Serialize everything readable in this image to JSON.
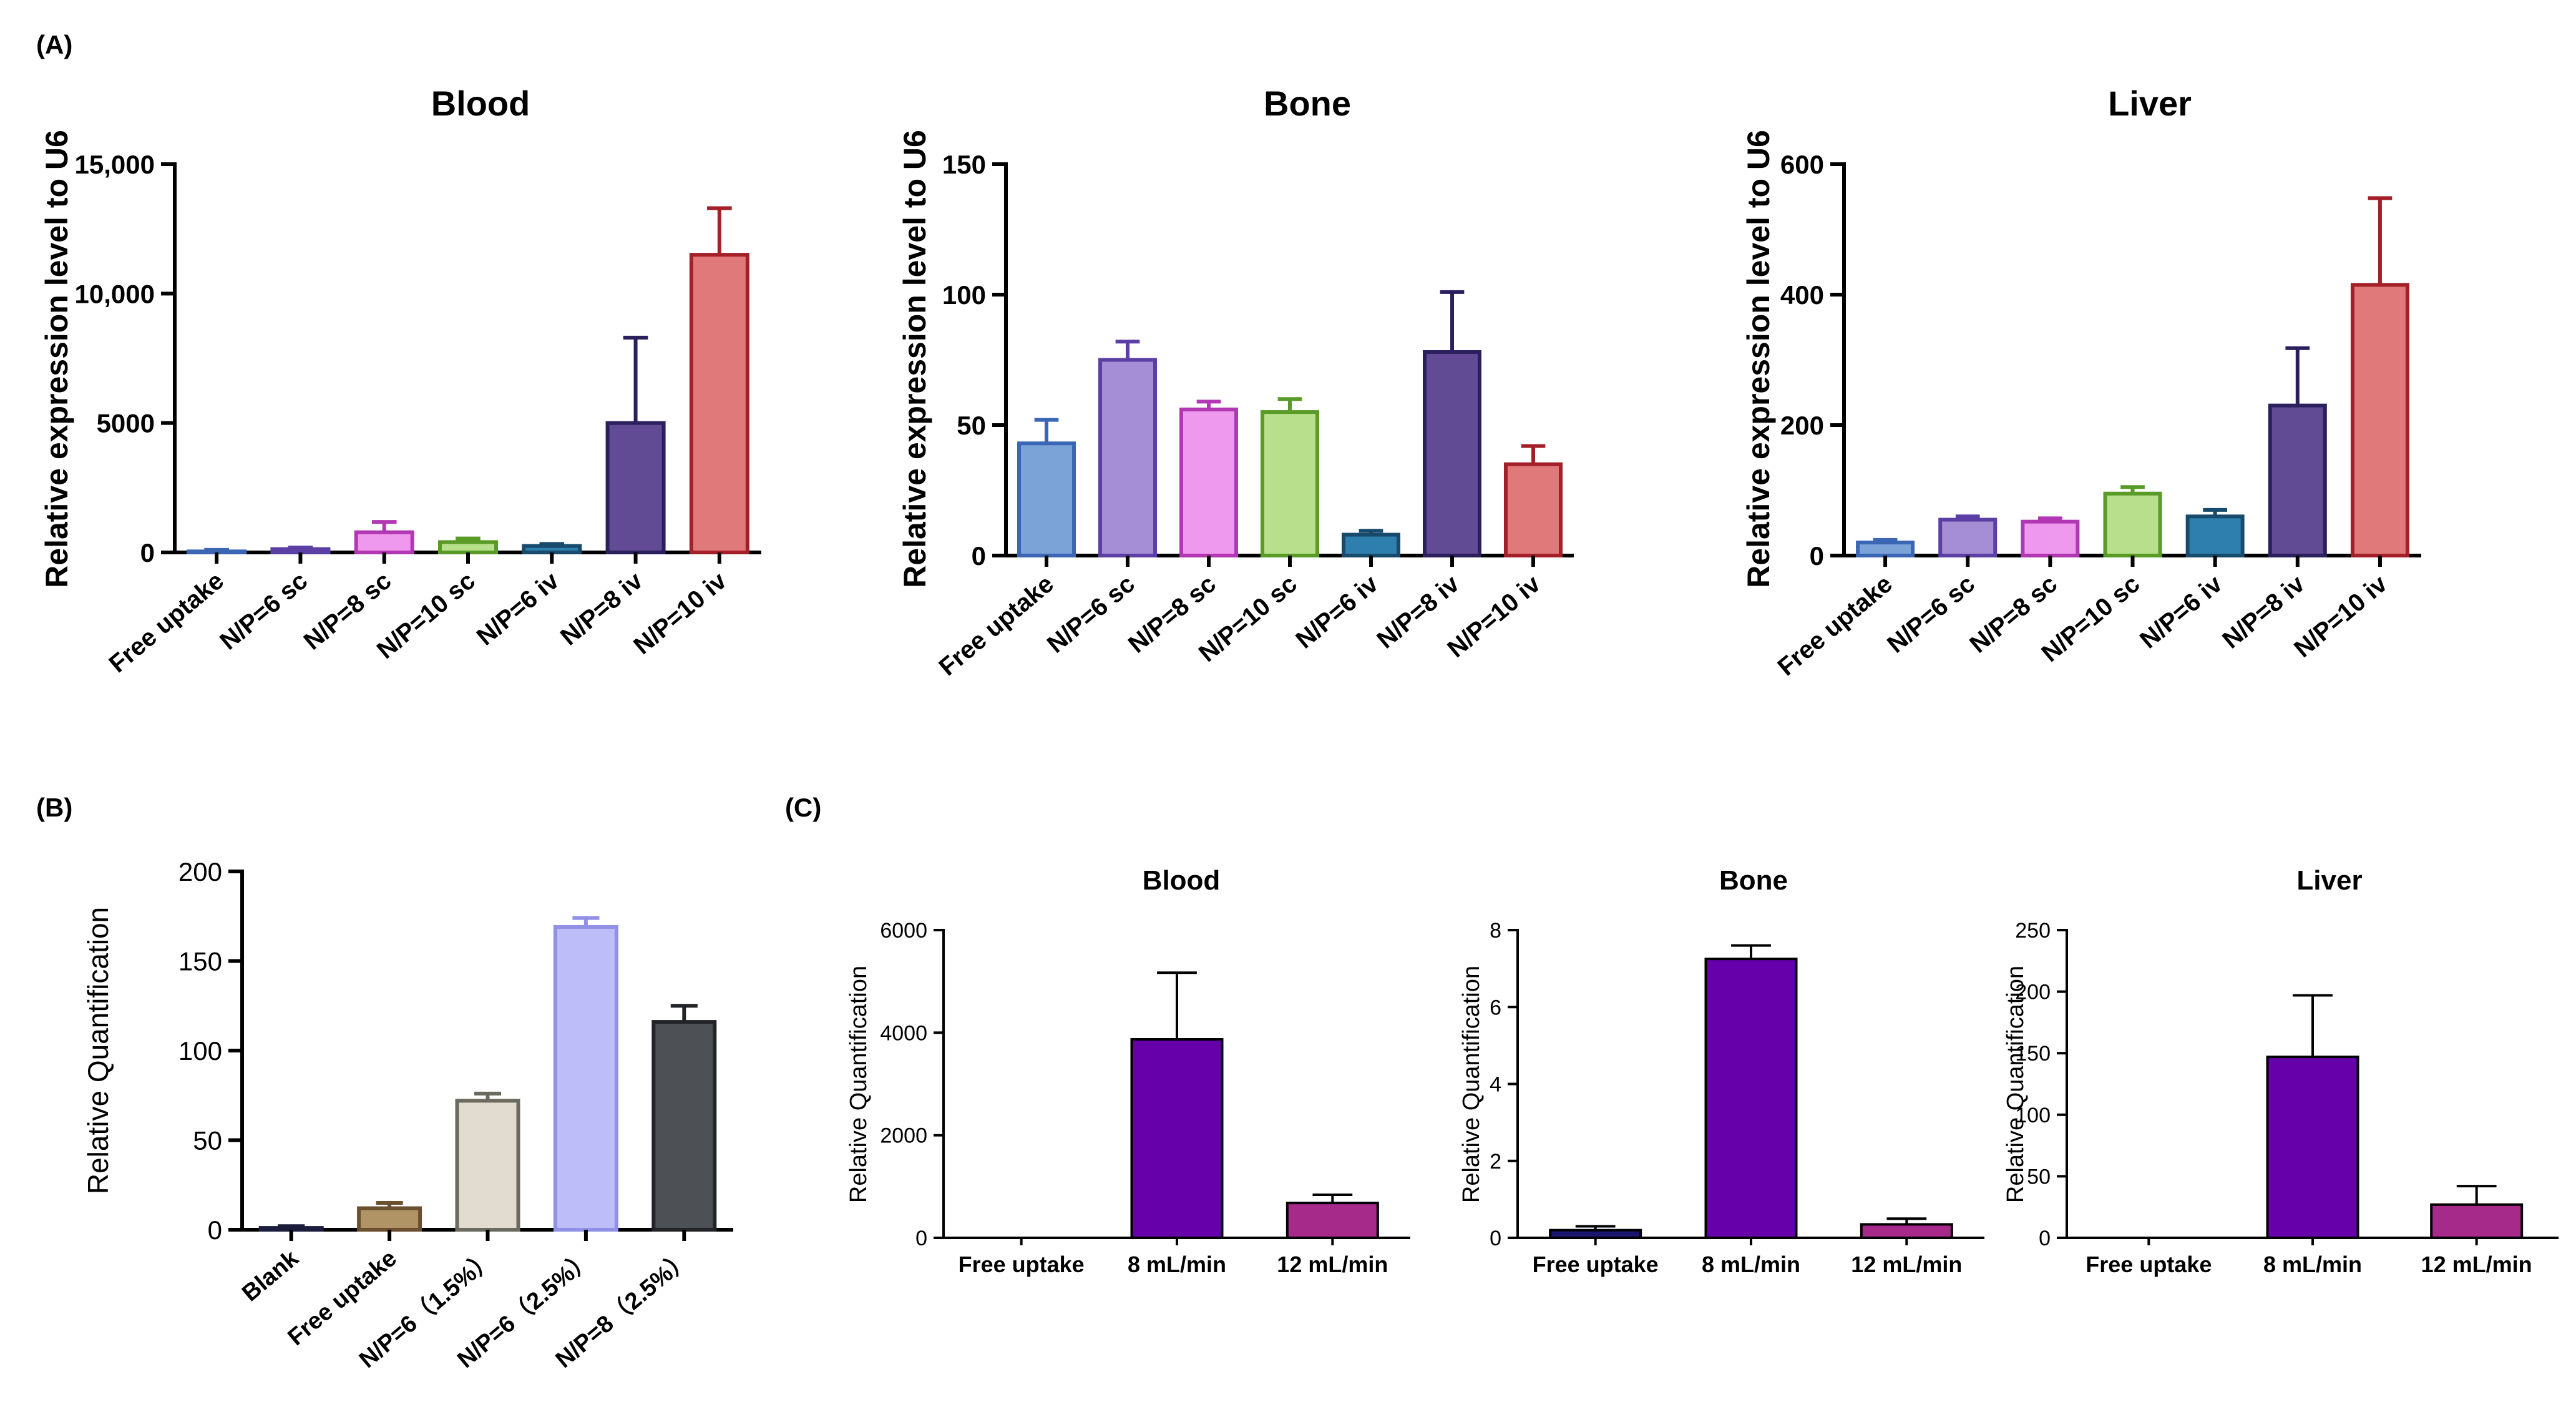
{
  "panel_labels": {
    "a": "(A)",
    "b": "(B)",
    "c": "(C)"
  },
  "chart_data": [
    {
      "id": "a-blood",
      "panel": "(A)",
      "type": "bar",
      "title": "Blood",
      "ylabel": "Relative expression level to U6",
      "ylim": [
        0,
        15000
      ],
      "yticks": [
        0,
        5000,
        10000,
        15000
      ],
      "ytick_labels": [
        "0",
        "5000",
        "10,000",
        "15,000"
      ],
      "categories": [
        "Free uptake",
        "N/P=6 sc",
        "N/P=8 sc",
        "N/P=10 sc",
        "N/P=6 iv",
        "N/P=8 iv",
        "N/P=10 iv"
      ],
      "values": [
        40,
        130,
        780,
        400,
        250,
        5000,
        11500
      ],
      "errors": [
        60,
        60,
        400,
        140,
        80,
        3300,
        1800
      ],
      "colors": [
        "#7ba3d8",
        "#a58ed6",
        "#ee99ee",
        "#b8e08c",
        "#2e7fae",
        "#614b95",
        "#e07a7a"
      ],
      "edge_colors": [
        "#3a66b4",
        "#5c3fa4",
        "#b237b2",
        "#5a9a26",
        "#184a6c",
        "#2c1f5e",
        "#a42028"
      ]
    },
    {
      "id": "a-bone",
      "panel": "(A)",
      "type": "bar",
      "title": "Bone",
      "ylabel": "Relative expression level to U6",
      "ylim": [
        0,
        150
      ],
      "yticks": [
        0,
        50,
        100,
        150
      ],
      "ytick_labels": [
        "0",
        "50",
        "100",
        "150"
      ],
      "categories": [
        "Free uptake",
        "N/P=6 sc",
        "N/P=8 sc",
        "N/P=10 sc",
        "N/P=6 iv",
        "N/P=8 iv",
        "N/P=10 iv"
      ],
      "values": [
        43,
        75,
        56,
        55,
        8,
        78,
        35
      ],
      "errors": [
        9,
        7,
        3,
        5,
        1.5,
        23,
        7
      ],
      "colors": [
        "#7ba3d8",
        "#a58ed6",
        "#ee99ee",
        "#b8e08c",
        "#2e7fae",
        "#614b95",
        "#e07a7a"
      ],
      "edge_colors": [
        "#3a66b4",
        "#5c3fa4",
        "#b237b2",
        "#5a9a26",
        "#184a6c",
        "#2c1f5e",
        "#a42028"
      ]
    },
    {
      "id": "a-liver",
      "panel": "(A)",
      "type": "bar",
      "title": "Liver",
      "ylabel": "Relative expression level to U6",
      "ylim": [
        0,
        600
      ],
      "yticks": [
        0,
        200,
        400,
        600
      ],
      "ytick_labels": [
        "0",
        "200",
        "400",
        "600"
      ],
      "categories": [
        "Free uptake",
        "N/P=6 sc",
        "N/P=8 sc",
        "N/P=10 sc",
        "N/P=6 iv",
        "N/P=8 iv",
        "N/P=10 iv"
      ],
      "values": [
        20,
        55,
        52,
        95,
        60,
        230,
        415
      ],
      "errors": [
        4,
        5,
        5,
        10,
        10,
        88,
        133
      ],
      "colors": [
        "#7ba3d8",
        "#a58ed6",
        "#ee99ee",
        "#b8e08c",
        "#2e7fae",
        "#614b95",
        "#e07a7a"
      ],
      "edge_colors": [
        "#3a66b4",
        "#5c3fa4",
        "#b237b2",
        "#5a9a26",
        "#184a6c",
        "#2c1f5e",
        "#a42028"
      ]
    },
    {
      "id": "b",
      "panel": "(B)",
      "type": "bar",
      "title": "",
      "ylabel": "Relative Quantification",
      "ylim": [
        0,
        200
      ],
      "yticks": [
        0,
        50,
        100,
        150,
        200
      ],
      "ytick_labels": [
        "0",
        "50",
        "100",
        "150",
        "200"
      ],
      "categories": [
        "Blank",
        "Free uptake",
        "N/P=6（1.5%）",
        "N/P=6（2.5%）",
        "N/P=8（2.5%）"
      ],
      "values": [
        1,
        12,
        72,
        169,
        116
      ],
      "errors": [
        1,
        3,
        4,
        5,
        9
      ],
      "colors": [
        "#3a3a6a",
        "#b09466",
        "#e2dbcf",
        "#bdbdfa",
        "#4d5055"
      ],
      "edge_colors": [
        "#1c1c3c",
        "#6a5030",
        "#6a6a5e",
        "#9090e6",
        "#222428"
      ]
    },
    {
      "id": "c-blood",
      "panel": "(C)",
      "type": "bar",
      "title": "Blood",
      "ylabel": "Relative Quantification",
      "ylim": [
        0,
        6000
      ],
      "yticks": [
        0,
        2000,
        4000,
        6000
      ],
      "ytick_labels": [
        "0",
        "2000",
        "4000",
        "6000"
      ],
      "categories": [
        "Free uptake",
        "8 mL/min",
        "12 mL/min"
      ],
      "values": [
        0,
        3870,
        680
      ],
      "errors": [
        0,
        1300,
        160
      ],
      "colors": [
        "#6600aa",
        "#6600aa",
        "#a52a8a"
      ],
      "edge_colors": [
        "#000000",
        "#000000",
        "#000000"
      ]
    },
    {
      "id": "c-bone",
      "panel": "(C)",
      "type": "bar",
      "title": "Bone",
      "ylabel": "Relative Quantification",
      "ylim": [
        0,
        8
      ],
      "yticks": [
        0,
        2,
        4,
        6,
        8
      ],
      "ytick_labels": [
        "0",
        "2",
        "4",
        "6",
        "8"
      ],
      "categories": [
        "Free uptake",
        "8 mL/min",
        "12 mL/min"
      ],
      "values": [
        0.2,
        7.25,
        0.35
      ],
      "errors": [
        0.1,
        0.35,
        0.15
      ],
      "colors": [
        "#1a1570",
        "#6600aa",
        "#a52a8a"
      ],
      "edge_colors": [
        "#000000",
        "#000000",
        "#000000"
      ]
    },
    {
      "id": "c-liver",
      "panel": "(C)",
      "type": "bar",
      "title": "Liver",
      "ylabel": "Relative Quantification",
      "ylim": [
        0,
        250
      ],
      "yticks": [
        0,
        50,
        100,
        150,
        200,
        250
      ],
      "ytick_labels": [
        "0",
        "50",
        "100",
        "150",
        "200",
        "250"
      ],
      "categories": [
        "Free uptake",
        "8 mL/min",
        "12 mL/min"
      ],
      "values": [
        0,
        147,
        27
      ],
      "errors": [
        0,
        50,
        15
      ],
      "colors": [
        "#6600aa",
        "#6600aa",
        "#a52a8a"
      ],
      "edge_colors": [
        "#000000",
        "#000000",
        "#000000"
      ]
    }
  ]
}
